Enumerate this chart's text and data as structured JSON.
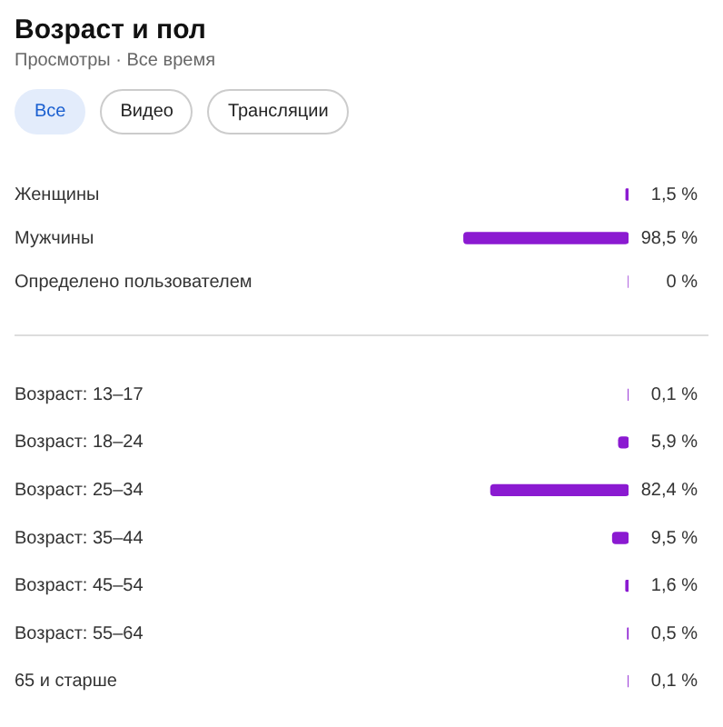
{
  "chart_data": [
    {
      "type": "bar",
      "orientation": "horizontal",
      "title": "Возраст и пол",
      "subtitle": "Просмотры · Все время",
      "annotations": [
        "Все",
        "Видео",
        "Трансляции"
      ],
      "categories": [
        "Женщины",
        "Мужчины",
        "Определено пользователем"
      ],
      "values": [
        1.5,
        98.5,
        0
      ],
      "value_labels": [
        "1,5 %",
        "98,5 %",
        "0 %"
      ],
      "color": "#8b1ad1"
    },
    {
      "type": "bar",
      "orientation": "horizontal",
      "categories": [
        "Возраст: 13–17",
        "Возраст: 18–24",
        "Возраст: 25–34",
        "Возраст: 35–44",
        "Возраст: 45–54",
        "Возраст: 55–64",
        "65 и старше"
      ],
      "values": [
        0.1,
        5.9,
        82.4,
        9.5,
        1.6,
        0.5,
        0.1
      ],
      "value_labels": [
        "0,1 %",
        "5,9 %",
        "82,4 %",
        "9,5 %",
        "1,6 %",
        "0,5 %",
        "0,1 %"
      ],
      "color": "#8b1ad1"
    }
  ]
}
